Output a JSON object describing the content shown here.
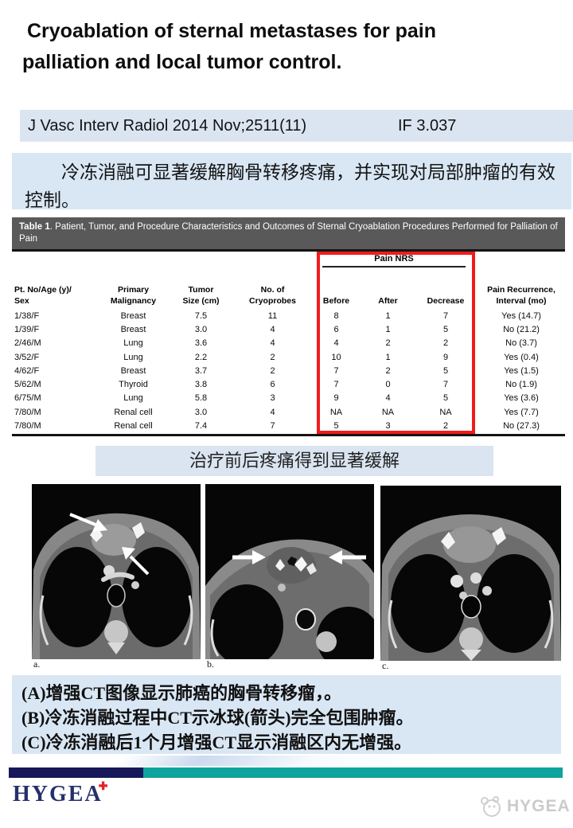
{
  "title": "Cryoablation of sternal metastases for pain palliation and local tumor control.",
  "title_line1": "Cryoablation of sternal metastases for pain",
  "title_line2": "palliation and local tumor control.",
  "citation": {
    "journal": "J Vasc Interv Radiol 2014 Nov;2511(11)",
    "impact_factor": "IF 3.037"
  },
  "summary_cn": "冷冻消融可显著缓解胸骨转移疼痛，并实现对局部肿瘤的有效控制。",
  "table": {
    "caption_label": "Table 1",
    "caption_rest": ". Patient, Tumor, and Procedure Characteristics and Outcomes of Sternal Cryoablation Procedures Performed for Palliation of Pain",
    "group_header": "Pain NRS",
    "columns": [
      "Pt. No/Age (y)/\nSex",
      "Primary\nMalignancy",
      "Tumor\nSize (cm)",
      "No. of\nCryoprobes",
      "Before",
      "After",
      "Decrease",
      "Pain Recurrence,\nInterval (mo)"
    ],
    "rows": [
      [
        "1/38/F",
        "Breast",
        "7.5",
        "11",
        "8",
        "1",
        "7",
        "Yes (14.7)"
      ],
      [
        "1/39/F",
        "Breast",
        "3.0",
        "4",
        "6",
        "1",
        "5",
        "No (21.2)"
      ],
      [
        "2/46/M",
        "Lung",
        "3.6",
        "4",
        "4",
        "2",
        "2",
        "No (3.7)"
      ],
      [
        "3/52/F",
        "Lung",
        "2.2",
        "2",
        "10",
        "1",
        "9",
        "Yes (0.4)"
      ],
      [
        "4/62/F",
        "Breast",
        "3.7",
        "2",
        "7",
        "2",
        "5",
        "Yes (1.5)"
      ],
      [
        "5/62/M",
        "Thyroid",
        "3.8",
        "6",
        "7",
        "0",
        "7",
        "No (1.9)"
      ],
      [
        "6/75/M",
        "Lung",
        "5.8",
        "3",
        "9",
        "4",
        "5",
        "Yes (3.6)"
      ],
      [
        "7/80/M",
        "Renal cell",
        "3.0",
        "4",
        "NA",
        "NA",
        "NA",
        "Yes (7.7)"
      ],
      [
        "7/80/M",
        "Renal cell",
        "7.4",
        "7",
        "5",
        "3",
        "2",
        "No (27.3)"
      ]
    ]
  },
  "mid_caption_cn": "治疗前后疼痛得到显著缓解",
  "figures": {
    "a": "a.",
    "b": "b.",
    "c": "c."
  },
  "notes_cn": [
    "(A)增强CT图像显示肺癌的胸骨转移瘤，。",
    "(B)冷冻消融过程中CT示冰球(箭头)完全包围肿瘤。",
    "(C)冷冻消融后1个月增强CT显示消融区内无增强。"
  ],
  "footer": {
    "logo_text": "HYGEA",
    "logo_mark": "✚",
    "watermark_text": "HYGEA"
  },
  "colors": {
    "panel_blue": "#dbe5f1",
    "panel_blue_light": "#d9e7f5",
    "table_band_gray": "#595959",
    "highlight_red": "#f11b1b",
    "bar_navy": "#17175a",
    "bar_teal": "#0ca49d",
    "logo_navy": "#25306b",
    "watermark_gray": "#cbcbcb"
  }
}
